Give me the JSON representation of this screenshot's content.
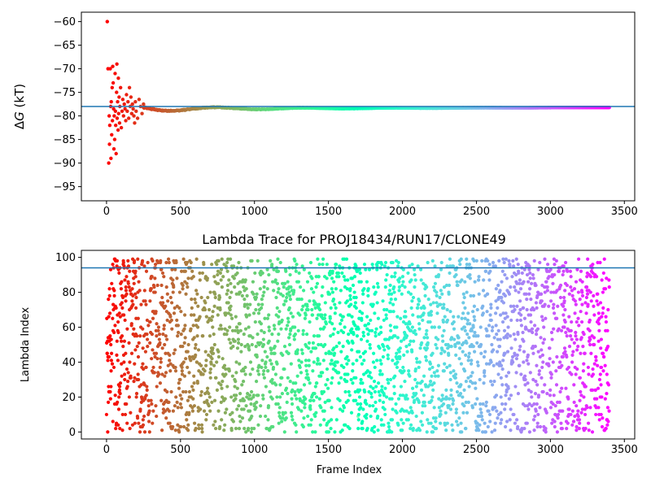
{
  "chart_data": [
    {
      "type": "scatter",
      "title": "",
      "xlabel": "",
      "ylabel": "ΔG (kT)",
      "ylabel_symbol": "Δ",
      "ylabel_var": "G",
      "ylabel_unit": " (kT)",
      "xlim": [
        -170,
        3570
      ],
      "ylim": [
        -98,
        -58
      ],
      "xticks": [
        0,
        500,
        1000,
        1500,
        2000,
        2500,
        3000,
        3500
      ],
      "xtick_labels": [
        "0",
        "500",
        "1000",
        "1500",
        "2000",
        "2500",
        "3000",
        "3500"
      ],
      "yticks": [
        -95,
        -90,
        -85,
        -80,
        -75,
        -70,
        -65,
        -60
      ],
      "ytick_labels": [
        "−95",
        "−90",
        "−85",
        "−80",
        "−75",
        "−70",
        "−65",
        "−60"
      ],
      "colormap": "rainbow (reversed along frame index)",
      "hline": {
        "y": -78.0,
        "color": "#1f77b4"
      },
      "n_frames": 3400,
      "early_points": [
        [
          5,
          -60.0
        ],
        [
          10,
          -70.0
        ],
        [
          15,
          -90.0
        ],
        [
          18,
          -80.0
        ],
        [
          20,
          -86.0
        ],
        [
          22,
          -82.0
        ],
        [
          25,
          -70.0
        ],
        [
          28,
          -78.0
        ],
        [
          30,
          -89.0
        ],
        [
          32,
          -77.0
        ],
        [
          35,
          -84.0
        ],
        [
          38,
          -74.0
        ],
        [
          40,
          -81.0
        ],
        [
          42,
          -69.5
        ],
        [
          45,
          -73.0
        ],
        [
          48,
          -78.5
        ],
        [
          50,
          -87.0
        ],
        [
          52,
          -80.0
        ],
        [
          55,
          -85.0
        ],
        [
          58,
          -71.0
        ],
        [
          60,
          -79.0
        ],
        [
          62,
          -82.0
        ],
        [
          65,
          -88.0
        ],
        [
          68,
          -75.0
        ],
        [
          70,
          -69.0
        ],
        [
          72,
          -80.5
        ],
        [
          75,
          -77.0
        ],
        [
          78,
          -83.0
        ],
        [
          80,
          -72.0
        ],
        [
          82,
          -79.5
        ],
        [
          85,
          -76.0
        ],
        [
          88,
          -81.5
        ],
        [
          90,
          -78.0
        ],
        [
          95,
          -74.0
        ],
        [
          100,
          -82.5
        ],
        [
          105,
          -79.0
        ],
        [
          110,
          -76.5
        ],
        [
          115,
          -80.0
        ],
        [
          120,
          -77.5
        ],
        [
          125,
          -78.5
        ],
        [
          130,
          -81.0
        ],
        [
          135,
          -75.5
        ],
        [
          140,
          -79.0
        ],
        [
          145,
          -77.0
        ],
        [
          150,
          -80.5
        ],
        [
          155,
          -74.0
        ],
        [
          160,
          -78.0
        ],
        [
          165,
          -76.0
        ],
        [
          170,
          -79.5
        ],
        [
          175,
          -77.5
        ],
        [
          180,
          -78.5
        ],
        [
          185,
          -80.0
        ],
        [
          190,
          -81.5
        ],
        [
          195,
          -77.0
        ],
        [
          200,
          -79.0
        ],
        [
          210,
          -80.5
        ],
        [
          220,
          -76.5
        ],
        [
          230,
          -78.0
        ],
        [
          240,
          -79.5
        ],
        [
          250,
          -77.5
        ]
      ],
      "tail_trend": {
        "from_x": 250,
        "to_x": 3400,
        "start_y": -78.5,
        "end_y": -78.2
      }
    },
    {
      "type": "scatter",
      "title": "Lambda Trace for PROJ18434/RUN17/CLONE49",
      "xlabel": "Frame Index",
      "ylabel": "Lambda Index",
      "xlim": [
        -170,
        3570
      ],
      "ylim": [
        -4,
        104
      ],
      "xticks": [
        0,
        500,
        1000,
        1500,
        2000,
        2500,
        3000,
        3500
      ],
      "xtick_labels": [
        "0",
        "500",
        "1000",
        "1500",
        "2000",
        "2500",
        "3000",
        "3500"
      ],
      "yticks": [
        0,
        20,
        40,
        60,
        80,
        100
      ],
      "ytick_labels": [
        "0",
        "20",
        "40",
        "60",
        "80",
        "100"
      ],
      "colormap": "rainbow (reversed along frame index)",
      "hline": {
        "y": 94,
        "color": "#1f77b4"
      },
      "n_frames": 3400,
      "lambda_range": [
        0,
        99
      ]
    }
  ]
}
